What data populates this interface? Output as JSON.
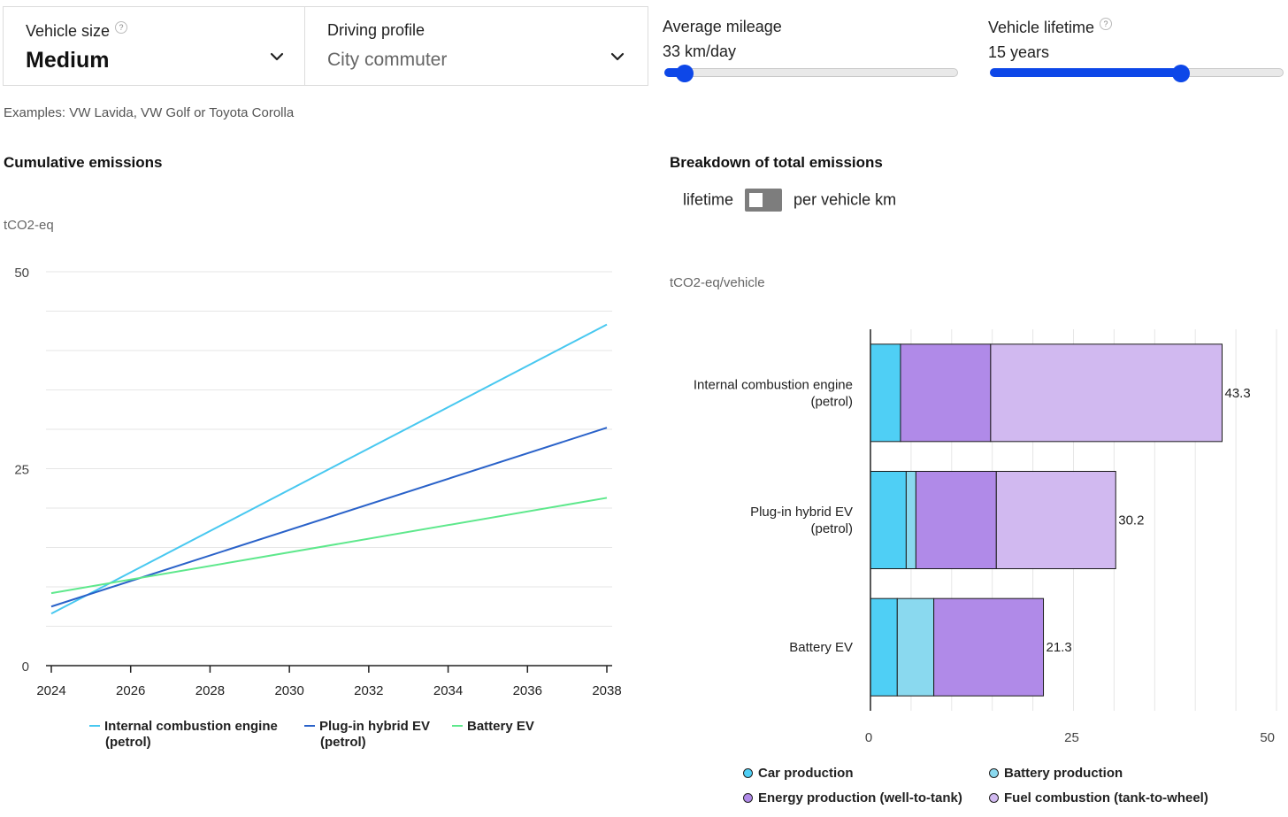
{
  "controls": {
    "vehicle_size": {
      "label": "Vehicle size",
      "help": "?",
      "value": "Medium"
    },
    "driving_profile": {
      "label": "Driving profile",
      "value": "City commuter"
    },
    "average_mileage": {
      "label": "Average mileage",
      "value": "33 km/day",
      "level": 0.04
    },
    "vehicle_lifetime": {
      "label": "Vehicle lifetime",
      "help": "?",
      "value": "15 years",
      "level": 0.66
    },
    "examples": "Examples: VW Lavida, VW Golf or Toyota Corolla"
  },
  "toggle": {
    "left_label": "lifetime",
    "right_label": "per vehicle km",
    "selected": "lifetime"
  },
  "colors": {
    "ice": "#48c8f0",
    "phev": "#2a62c9",
    "bev": "#5ee88c",
    "car_production": "#4fcff5",
    "battery_production": "#8ad9ef",
    "energy_production": "#b08ae8",
    "fuel_combustion": "#d1b9f0",
    "slider": "#0d47e8"
  },
  "chart_data": [
    {
      "type": "line",
      "title": "Cumulative emissions",
      "ylabel": "tCO2-eq",
      "xlim": [
        2024,
        2038
      ],
      "ylim": [
        0,
        50
      ],
      "x_ticks": [
        2024,
        2026,
        2028,
        2030,
        2032,
        2034,
        2036,
        2038
      ],
      "y_ticks": [
        0,
        25,
        50
      ],
      "grid": true,
      "legend_position": "bottom",
      "series": [
        {
          "name": "Internal combustion engine (petrol)",
          "legend_lines": [
            "Internal combustion engine",
            "(petrol)"
          ],
          "color_key": "ice",
          "x": [
            2024,
            2038
          ],
          "y": [
            6.6,
            43.3
          ]
        },
        {
          "name": "Plug-in hybrid EV (petrol)",
          "legend_lines": [
            "Plug-in hybrid EV",
            "(petrol)"
          ],
          "color_key": "phev",
          "x": [
            2024,
            2038
          ],
          "y": [
            7.5,
            30.2
          ]
        },
        {
          "name": "Battery EV",
          "legend_lines": [
            "Battery EV"
          ],
          "color_key": "bev",
          "x": [
            2024,
            2038
          ],
          "y": [
            9.2,
            21.3
          ]
        }
      ]
    },
    {
      "type": "bar",
      "orientation": "horizontal",
      "stacked": true,
      "title": "Breakdown of total emissions",
      "ylabel": "tCO2-eq/vehicle",
      "xlim": [
        0,
        50
      ],
      "x_ticks": [
        0,
        25,
        50
      ],
      "grid": true,
      "legend_position": "bottom",
      "categories": [
        {
          "lines": [
            "Internal combustion engine",
            "(petrol)"
          ],
          "total_label": "43.3"
        },
        {
          "lines": [
            "Plug-in hybrid EV",
            "(petrol)"
          ],
          "total_label": "30.2"
        },
        {
          "lines": [
            "Battery EV"
          ],
          "total_label": "21.3"
        }
      ],
      "series": [
        {
          "name": "Car production",
          "color_key": "car_production",
          "values": [
            3.7,
            4.4,
            3.3
          ]
        },
        {
          "name": "Battery production",
          "color_key": "battery_production",
          "values": [
            0,
            1.2,
            4.5
          ]
        },
        {
          "name": "Energy production (well-to-tank)",
          "color_key": "energy_production",
          "values": [
            11.1,
            9.9,
            13.5
          ]
        },
        {
          "name": "Fuel combustion (tank-to-wheel)",
          "color_key": "fuel_combustion",
          "values": [
            28.5,
            14.7,
            0
          ]
        }
      ]
    }
  ]
}
